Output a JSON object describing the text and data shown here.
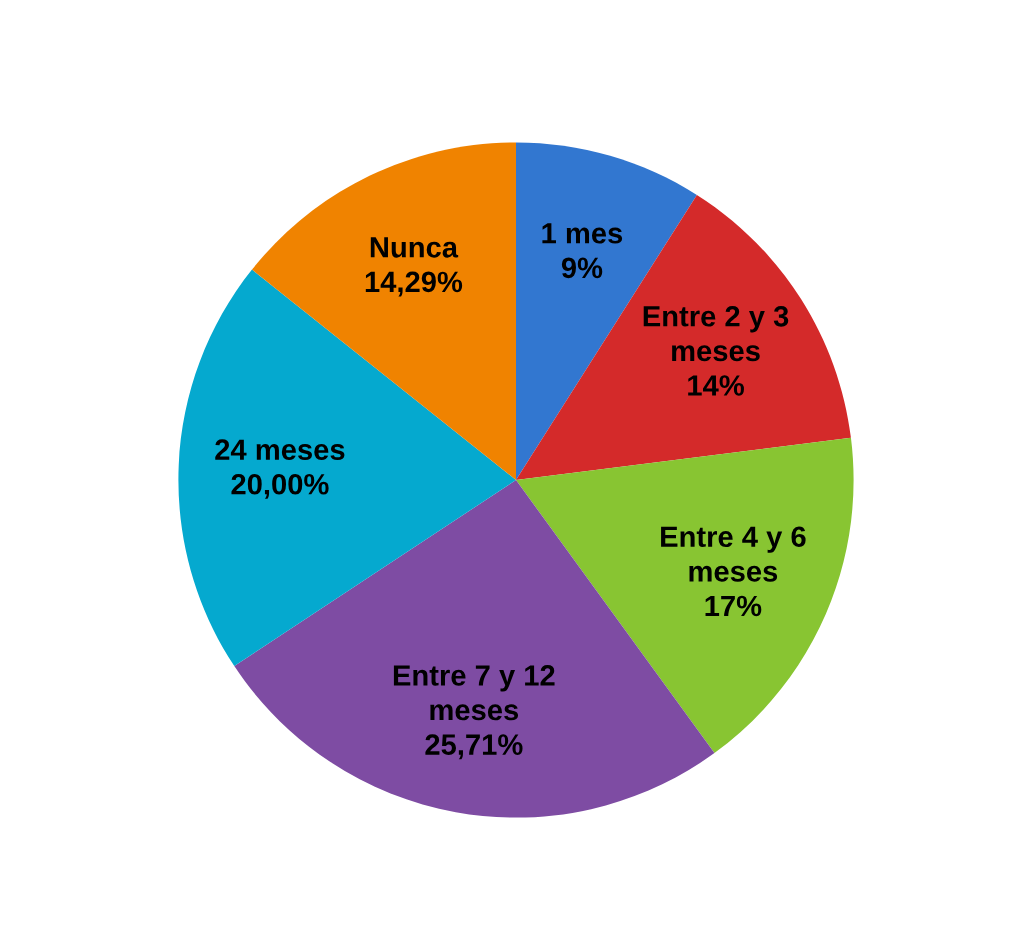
{
  "chart_data": {
    "type": "pie",
    "categories": [
      "1 mes",
      "Entre 2 y 3\nmeses",
      "Entre 4 y 6\nmeses",
      "Entre 7 y 12\nmeses",
      "24 meses",
      "Nunca"
    ],
    "values": [
      9,
      14,
      17,
      25.71,
      20.0,
      14.29
    ],
    "value_labels": [
      "9%",
      "14%",
      "17%",
      "25,71%",
      "20,00%",
      "14,29%"
    ],
    "colors": [
      "#3277d0",
      "#d42a2a",
      "#88c532",
      "#7e4ca3",
      "#05a9cf",
      "#f08300"
    ],
    "legend": false
  }
}
